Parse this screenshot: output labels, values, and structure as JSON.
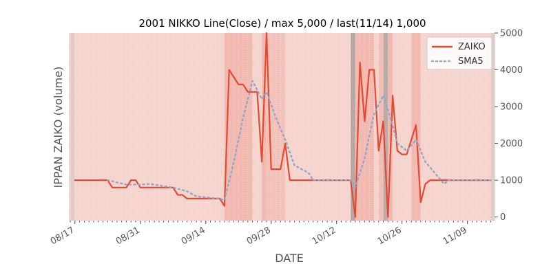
{
  "chart_data": {
    "type": "line",
    "title": "2001 NIKKO Line(Close) / max 5,000 / last(11/14) 1,000",
    "xlabel": "DATE",
    "ylabel": "IPPAN ZAIKO (volume)",
    "y_axis_side": "right",
    "ylim": [
      -100,
      5000
    ],
    "yticks": [
      0,
      1000,
      2000,
      3000,
      4000,
      5000
    ],
    "ytick_labels": [
      "0",
      "1000",
      "2000",
      "3000",
      "4000",
      "5000"
    ],
    "x_start": "2001-08-17",
    "x_end": "2001-11-14",
    "xticks": [
      "2001-08-17",
      "2001-08-31",
      "2001-09-14",
      "2001-09-28",
      "2001-10-12",
      "2001-10-26",
      "2001-11-09"
    ],
    "xtick_labels": [
      "08/17",
      "08/31",
      "09/14",
      "09/28",
      "10/12",
      "10/26",
      "11/09"
    ],
    "legend_position": "top-right",
    "series": [
      {
        "name": "ZAIKO",
        "color": "#e24a33",
        "style": "solid",
        "points": [
          [
            "2001-08-17",
            1000
          ],
          [
            "2001-08-24",
            1000
          ],
          [
            "2001-08-25",
            800
          ],
          [
            "2001-08-28",
            800
          ],
          [
            "2001-08-29",
            1000
          ],
          [
            "2001-08-30",
            1000
          ],
          [
            "2001-08-31",
            800
          ],
          [
            "2001-09-07",
            800
          ],
          [
            "2001-09-08",
            600
          ],
          [
            "2001-09-09",
            600
          ],
          [
            "2001-09-10",
            500
          ],
          [
            "2001-09-17",
            500
          ],
          [
            "2001-09-18",
            300
          ],
          [
            "2001-09-19",
            4000
          ],
          [
            "2001-09-21",
            3600
          ],
          [
            "2001-09-22",
            3600
          ],
          [
            "2001-09-23",
            3400
          ],
          [
            "2001-09-25",
            3400
          ],
          [
            "2001-09-26",
            1500
          ],
          [
            "2001-09-27",
            5000
          ],
          [
            "2001-09-28",
            1300
          ],
          [
            "2001-09-30",
            1300
          ],
          [
            "2001-10-01",
            2000
          ],
          [
            "2001-10-02",
            1000
          ],
          [
            "2001-10-15",
            1000
          ],
          [
            "2001-10-16",
            0
          ],
          [
            "2001-10-17",
            4200
          ],
          [
            "2001-10-18",
            2600
          ],
          [
            "2001-10-19",
            4000
          ],
          [
            "2001-10-20",
            4000
          ],
          [
            "2001-10-21",
            1800
          ],
          [
            "2001-10-22",
            2600
          ],
          [
            "2001-10-23",
            0
          ],
          [
            "2001-10-24",
            3300
          ],
          [
            "2001-10-25",
            1800
          ],
          [
            "2001-10-26",
            1700
          ],
          [
            "2001-10-27",
            1700
          ],
          [
            "2001-10-29",
            2500
          ],
          [
            "2001-10-30",
            400
          ],
          [
            "2001-10-31",
            900
          ],
          [
            "2001-11-01",
            1000
          ],
          [
            "2001-11-14",
            1000
          ]
        ]
      },
      {
        "name": "SMA5",
        "color": "#92a8c8",
        "style": "dotted",
        "points": [
          [
            "2001-08-24",
            1000
          ],
          [
            "2001-08-28",
            880
          ],
          [
            "2001-08-31",
            880
          ],
          [
            "2001-09-02",
            900
          ],
          [
            "2001-09-07",
            800
          ],
          [
            "2001-09-10",
            700
          ],
          [
            "2001-09-12",
            560
          ],
          [
            "2001-09-17",
            500
          ],
          [
            "2001-09-18",
            460
          ],
          [
            "2001-09-20",
            1500
          ],
          [
            "2001-09-22",
            2700
          ],
          [
            "2001-09-24",
            3700
          ],
          [
            "2001-09-26",
            3200
          ],
          [
            "2001-09-27",
            3400
          ],
          [
            "2001-09-29",
            2700
          ],
          [
            "2001-10-01",
            2100
          ],
          [
            "2001-10-03",
            1400
          ],
          [
            "2001-10-06",
            1200
          ],
          [
            "2001-10-07",
            1000
          ],
          [
            "2001-10-15",
            1000
          ],
          [
            "2001-10-16",
            800
          ],
          [
            "2001-10-18",
            1600
          ],
          [
            "2001-10-20",
            2800
          ],
          [
            "2001-10-22",
            3300
          ],
          [
            "2001-10-23",
            2900
          ],
          [
            "2001-10-24",
            2500
          ],
          [
            "2001-10-25",
            2000
          ],
          [
            "2001-10-27",
            1800
          ],
          [
            "2001-10-29",
            2100
          ],
          [
            "2001-10-31",
            1500
          ],
          [
            "2001-11-02",
            1200
          ],
          [
            "2001-11-04",
            900
          ],
          [
            "2001-11-05",
            1000
          ],
          [
            "2001-11-14",
            1000
          ]
        ]
      }
    ],
    "bands": [
      {
        "from": "2001-08-16",
        "to": "2001-08-17",
        "color": "#bbbbbb",
        "opacity": 0.35
      },
      {
        "from": "2001-09-18",
        "to": "2001-09-24",
        "color": "#e8796a",
        "opacity": 0.3
      },
      {
        "from": "2001-09-26",
        "to": "2001-09-27",
        "color": "#e8796a",
        "opacity": 0.3
      },
      {
        "from": "2001-09-27",
        "to": "2001-10-01",
        "color": "#e8796a",
        "opacity": 0.2
      },
      {
        "from": "2001-10-15",
        "to": "2001-10-16",
        "color": "#888888",
        "opacity": 0.6
      },
      {
        "from": "2001-10-16",
        "to": "2001-10-20",
        "color": "#e8796a",
        "opacity": 0.3
      },
      {
        "from": "2001-10-21",
        "to": "2001-10-22",
        "color": "#e8796a",
        "opacity": 0.25
      },
      {
        "from": "2001-10-22",
        "to": "2001-10-23",
        "color": "#888888",
        "opacity": 0.55
      },
      {
        "from": "2001-10-23",
        "to": "2001-10-24",
        "color": "#e8796a",
        "opacity": 0.3
      },
      {
        "from": "2001-10-28",
        "to": "2001-10-30",
        "color": "#e8796a",
        "opacity": 0.3
      },
      {
        "from": "2001-11-14",
        "to": "2001-11-15",
        "color": "#bbbbbb",
        "opacity": 0.35
      }
    ],
    "plot_background": "#f5d4cd",
    "grid": true
  }
}
